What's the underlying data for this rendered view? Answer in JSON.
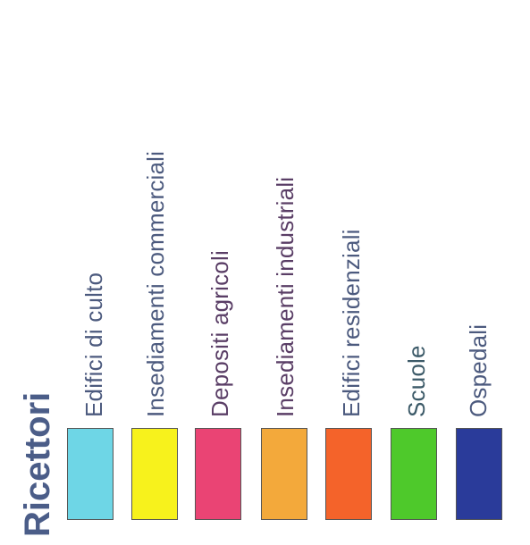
{
  "legend": {
    "title": "Ricettori",
    "title_color": "#4b5d88",
    "items": [
      {
        "label": "Edifici di culto",
        "color": "#6ed6e6",
        "text_color": "#4c5a7e"
      },
      {
        "label": "Insediamenti commerciali",
        "color": "#f7f21c",
        "text_color": "#4c5a7e"
      },
      {
        "label": "Depositi agricoli",
        "color": "#ea4474",
        "text_color": "#5a3e66"
      },
      {
        "label": "Insediamenti industriali",
        "color": "#f3a93b",
        "text_color": "#5a3e66"
      },
      {
        "label": "Edifici residenziali",
        "color": "#f4632a",
        "text_color": "#4c5a7e"
      },
      {
        "label": "Scuole",
        "color": "#4ec92b",
        "text_color": "#3c5a68"
      },
      {
        "label": "Ospedali",
        "color": "#2a3b9a",
        "text_color": "#4c5a7e"
      }
    ]
  }
}
